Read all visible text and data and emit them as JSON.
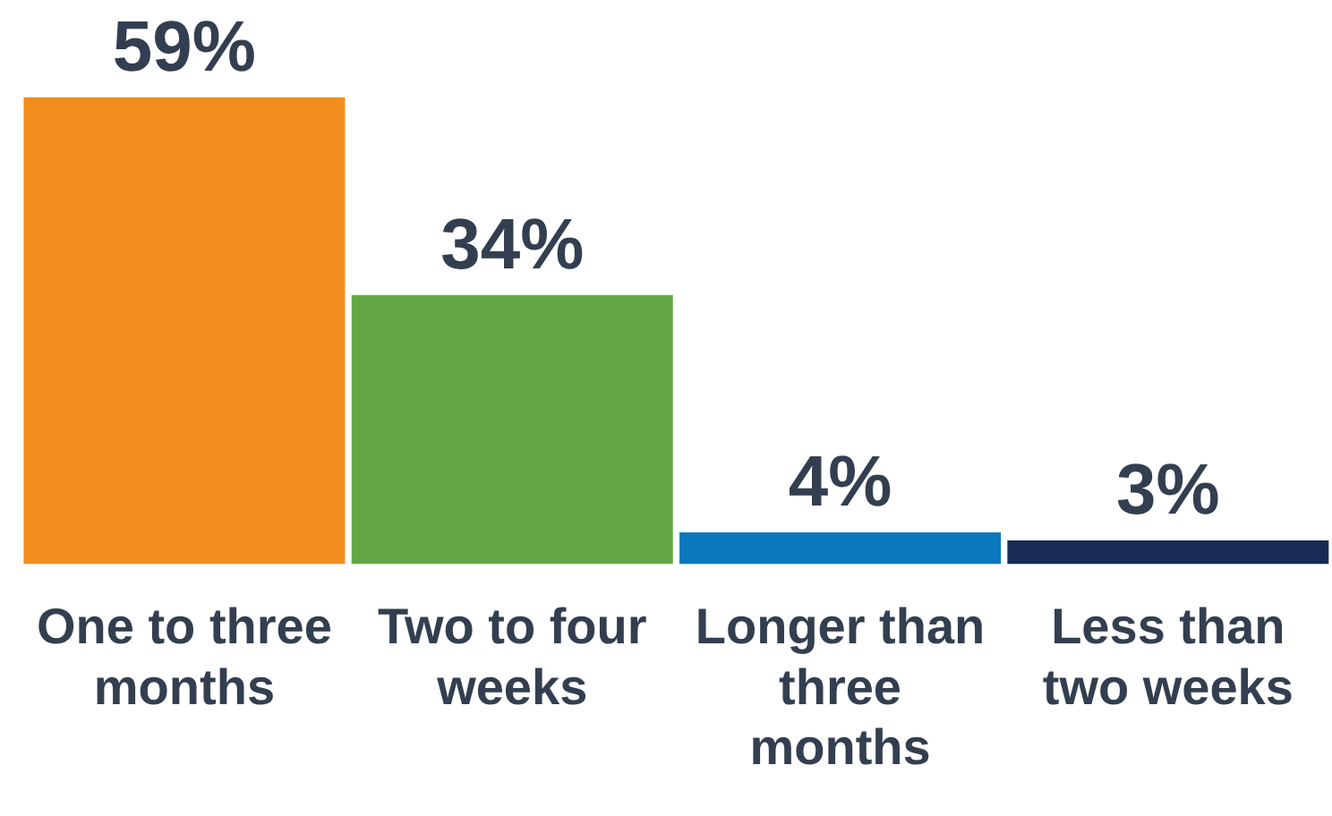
{
  "chart_data": {
    "type": "bar",
    "categories": [
      "One to three months",
      "Two to four weeks",
      "Longer than three months",
      "Less than two weeks"
    ],
    "values": [
      59,
      34,
      4,
      3
    ],
    "colors": [
      "#f28e1e",
      "#62a744",
      "#0b77bd",
      "#172b54"
    ],
    "value_labels": [
      "59%",
      "34%",
      "4%",
      "3%"
    ],
    "grid": false,
    "legend": false,
    "tick_labels": "x"
  }
}
